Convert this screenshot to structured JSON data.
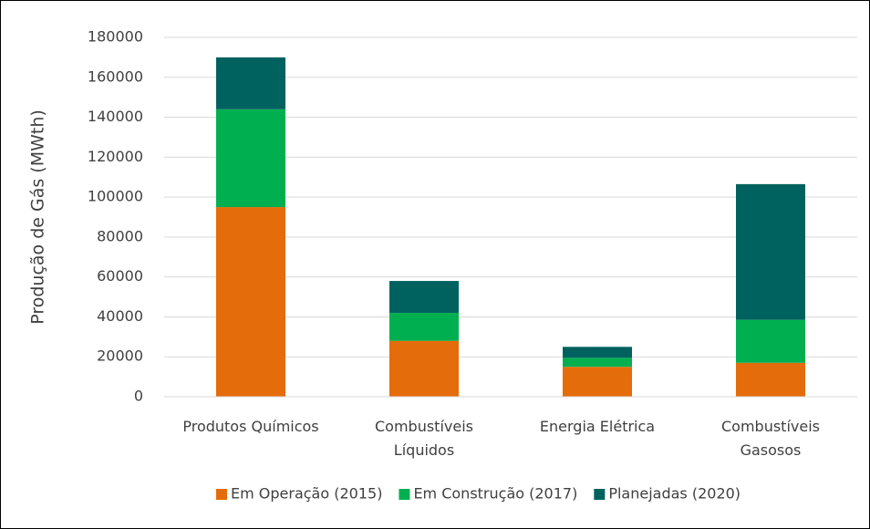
{
  "chart_data": {
    "type": "stacked_bar",
    "y_label": "Produção de Gás (MWth)",
    "categories": [
      "Produtos Químicos",
      "Combustíveis\nLíquidos",
      "Energia Elétrica",
      "Combustíveis\nGasosos"
    ],
    "series": [
      {
        "name": "Em Operação (2015)",
        "color": "#e46c0a",
        "values": [
          95000,
          28000,
          15000,
          17000
        ]
      },
      {
        "name": "Em Construção (2017)",
        "color": "#00b050",
        "values": [
          49000,
          14000,
          4500,
          21500
        ]
      },
      {
        "name": "Planejadas (2020)",
        "color": "#00625f",
        "values": [
          26000,
          16000,
          5500,
          68000
        ]
      }
    ],
    "ylim": [
      0,
      180000
    ],
    "yticks": [
      0,
      20000,
      40000,
      60000,
      80000,
      100000,
      120000,
      140000,
      160000,
      180000
    ],
    "grid": true,
    "legend": "bottom"
  }
}
